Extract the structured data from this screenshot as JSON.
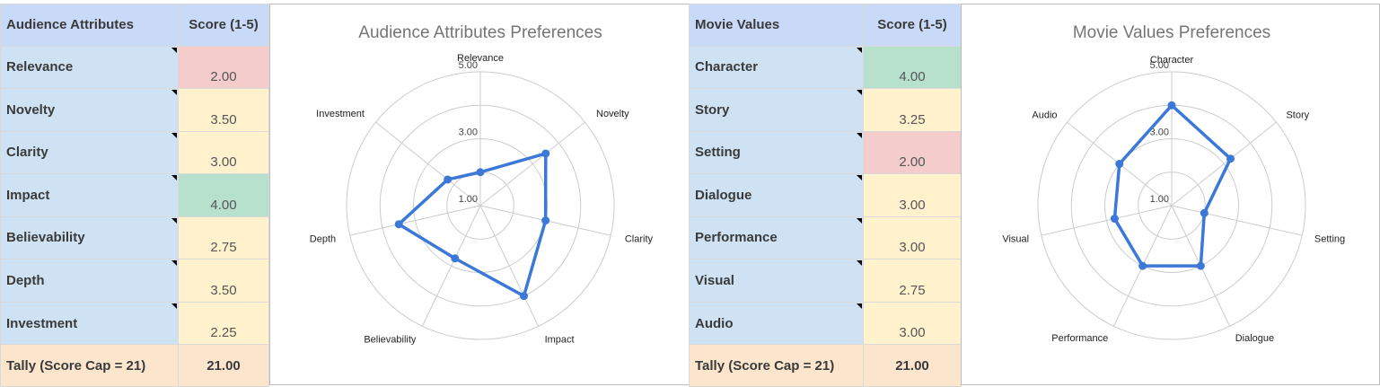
{
  "colors": {
    "header_bg": "#c9daf8",
    "label_bg": "#cfe2f3",
    "tally_bg": "#fce5cd",
    "score_red": "#f4cccc",
    "score_yellow": "#fff2cc",
    "score_green": "#b7e1cd",
    "series": "#3c78d8"
  },
  "left_table": {
    "header_label": "Audience Attributes",
    "header_score": "Score (1-5)",
    "rows": [
      {
        "label": "Relevance",
        "score": "2.00",
        "color": "#f4cccc"
      },
      {
        "label": "Novelty",
        "score": "3.50",
        "color": "#fff2cc"
      },
      {
        "label": "Clarity",
        "score": "3.00",
        "color": "#fff2cc"
      },
      {
        "label": "Impact",
        "score": "4.00",
        "color": "#b7e1cd"
      },
      {
        "label": "Believability",
        "score": "2.75",
        "color": "#fff2cc"
      },
      {
        "label": "Depth",
        "score": "3.50",
        "color": "#fff2cc"
      },
      {
        "label": "Investment",
        "score": "2.25",
        "color": "#fff2cc"
      }
    ],
    "tally_label": "Tally (Score Cap = 21)",
    "tally_value": "21.00"
  },
  "right_table": {
    "header_label": "Movie Values",
    "header_score": "Score (1-5)",
    "rows": [
      {
        "label": "Character",
        "score": "4.00",
        "color": "#b7e1cd"
      },
      {
        "label": "Story",
        "score": "3.25",
        "color": "#fff2cc"
      },
      {
        "label": "Setting",
        "score": "2.00",
        "color": "#f4cccc"
      },
      {
        "label": "Dialogue",
        "score": "3.00",
        "color": "#fff2cc"
      },
      {
        "label": "Performance",
        "score": "3.00",
        "color": "#fff2cc"
      },
      {
        "label": "Visual",
        "score": "2.75",
        "color": "#fff2cc"
      },
      {
        "label": "Audio",
        "score": "3.00",
        "color": "#fff2cc"
      }
    ],
    "tally_label": "Tally (Score Cap = 21)",
    "tally_value": "21.00"
  },
  "chart_data": [
    {
      "type": "radar",
      "title": "Audience Attributes Preferences",
      "categories": [
        "Relevance",
        "Novelty",
        "Clarity",
        "Impact",
        "Believability",
        "Depth",
        "Investment"
      ],
      "values": [
        2.0,
        3.5,
        3.0,
        4.0,
        2.75,
        3.5,
        2.25
      ],
      "rlim": [
        1,
        5
      ],
      "tick_labels": [
        "1.00",
        "3.00",
        "5.00"
      ],
      "grid": true,
      "legend": "none"
    },
    {
      "type": "radar",
      "title": "Movie Values Preferences",
      "categories": [
        "Character",
        "Story",
        "Setting",
        "Dialogue",
        "Performance",
        "Visual",
        "Audio"
      ],
      "values": [
        4.0,
        3.25,
        2.0,
        3.0,
        3.0,
        2.75,
        3.0
      ],
      "rlim": [
        1,
        5
      ],
      "tick_labels": [
        "1.00",
        "3.00",
        "5.00"
      ],
      "grid": true,
      "legend": "none"
    }
  ]
}
